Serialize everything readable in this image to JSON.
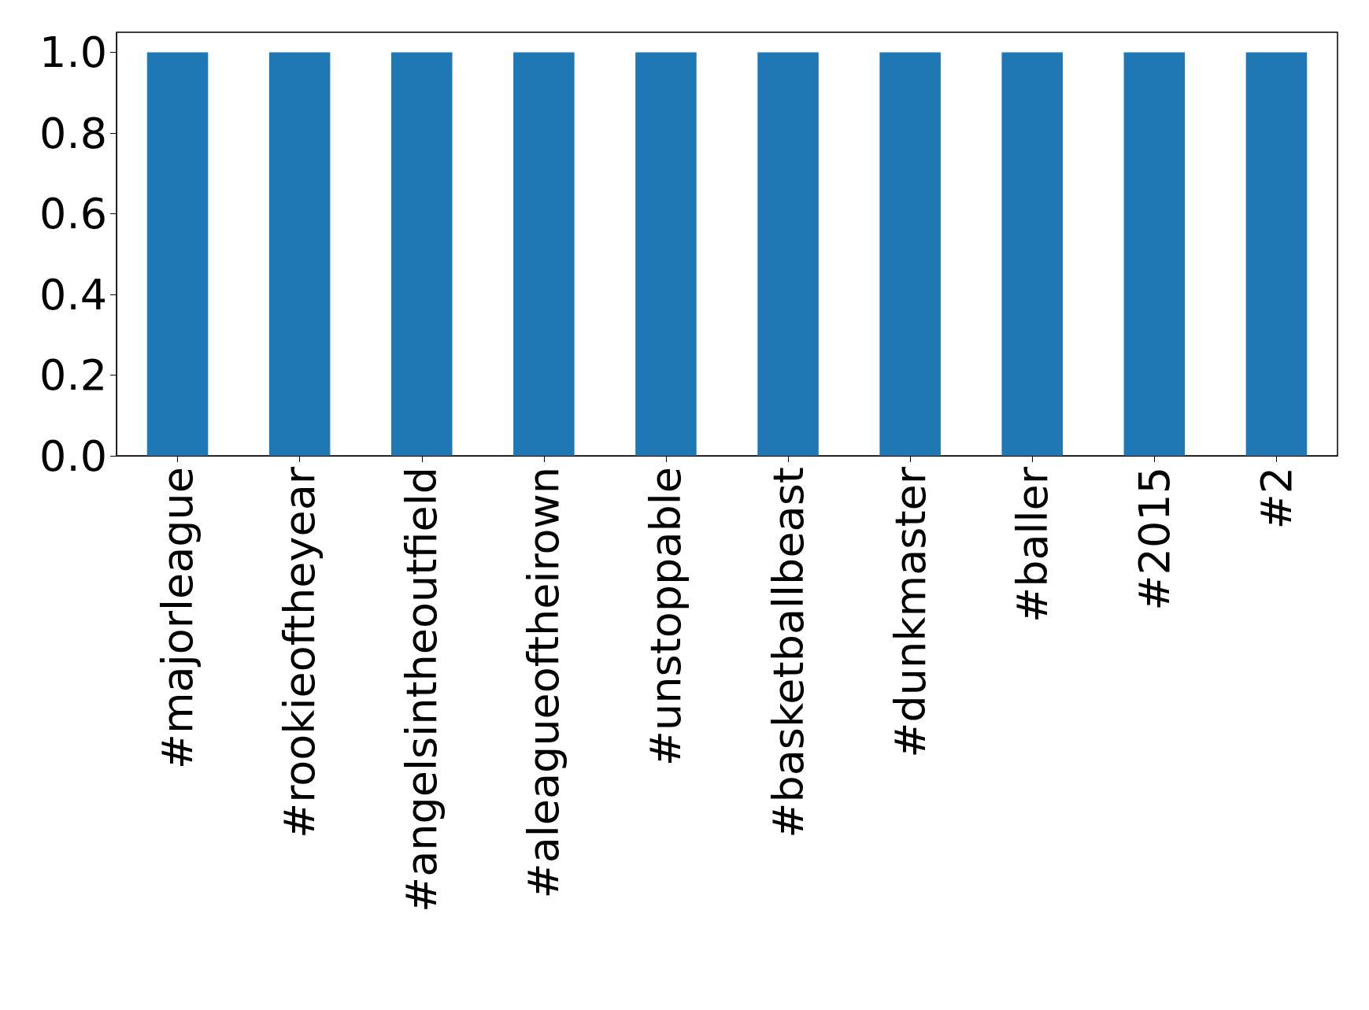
{
  "chart_data": {
    "type": "bar",
    "categories": [
      "#majorleague",
      "#rookieoftheyear",
      "#angelsintheoutfield",
      "#aleagueoftheirown",
      "#unstoppable",
      "#basketballbeast",
      "#dunkmaster",
      "#baller",
      "#2015",
      "#2"
    ],
    "values": [
      1,
      1,
      1,
      1,
      1,
      1,
      1,
      1,
      1,
      1
    ],
    "color": "#1f77b4",
    "ylim": [
      0,
      1.05
    ],
    "yticks": [
      {
        "value": 0,
        "label": "0.0"
      },
      {
        "value": 0.2,
        "label": "0.2"
      },
      {
        "value": 0.4,
        "label": "0.4"
      },
      {
        "value": 0.6,
        "label": "0.6"
      },
      {
        "value": 0.8,
        "label": "0.8"
      },
      {
        "value": 1,
        "label": "1.0"
      }
    ],
    "grid": false
  }
}
